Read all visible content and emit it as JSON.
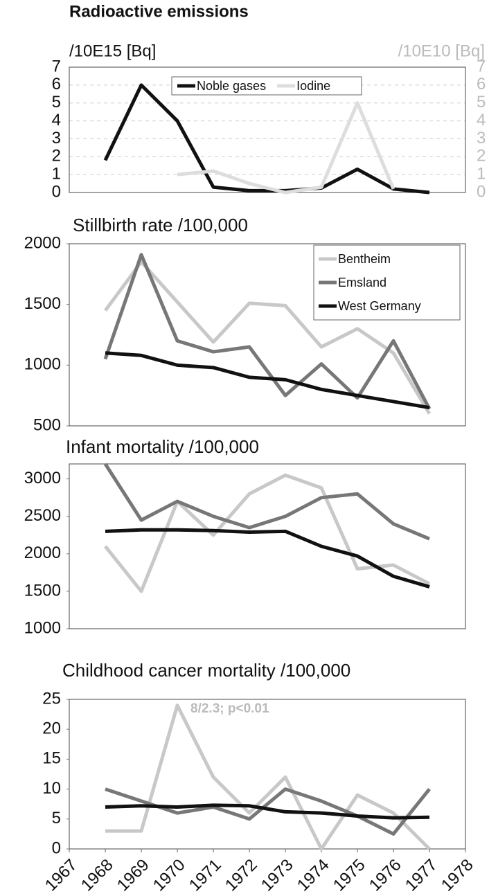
{
  "chart_data": [
    {
      "type": "line",
      "title": "Radioactive emissions",
      "ylabel": "/10E15 [Bq]",
      "y2label": "/10E10 [Bq]",
      "x": [
        1968,
        1969,
        1970,
        1971,
        1972,
        1973,
        1974,
        1975,
        1976,
        1977
      ],
      "xlim": [
        1967,
        1978
      ],
      "ylim": [
        0,
        7
      ],
      "yticks": [
        0,
        1,
        2,
        3,
        4,
        5,
        6,
        7
      ],
      "y2lim": [
        0,
        7
      ],
      "y2ticks": [
        0,
        1,
        2,
        3,
        4,
        5,
        6,
        7
      ],
      "grid": true,
      "legend": "top",
      "series": [
        {
          "name": "Noble gases",
          "color": "#111111",
          "values": [
            1.8,
            6.0,
            4.0,
            0.3,
            0.1,
            0.1,
            0.25,
            1.3,
            0.2,
            0.0
          ]
        },
        {
          "name": "Iodine",
          "color": "#dddddd",
          "axis": "y2",
          "values": [
            null,
            null,
            1.0,
            1.2,
            0.5,
            0.0,
            0.3,
            5.0,
            0.2,
            null
          ]
        }
      ]
    },
    {
      "type": "line",
      "title": "Stillbirth rate /100,000",
      "x": [
        1968,
        1969,
        1970,
        1971,
        1972,
        1973,
        1974,
        1975,
        1976,
        1977
      ],
      "xlim": [
        1967,
        1978
      ],
      "ylim": [
        500,
        2000
      ],
      "yticks": [
        500,
        1000,
        1500,
        2000
      ],
      "legend": "upper right",
      "series": [
        {
          "name": "Bentheim",
          "color": "#c8c8c8",
          "values": [
            1450,
            1850,
            1520,
            1190,
            1510,
            1490,
            1150,
            1300,
            1100,
            600
          ]
        },
        {
          "name": "Emsland",
          "color": "#777777",
          "values": [
            1050,
            1910,
            1200,
            1110,
            1150,
            750,
            1010,
            730,
            1200,
            640
          ]
        },
        {
          "name": "West Germany",
          "color": "#111111",
          "values": [
            1100,
            1080,
            1000,
            980,
            900,
            880,
            800,
            750,
            700,
            650
          ]
        }
      ]
    },
    {
      "type": "line",
      "title": "Infant mortality /100,000",
      "x": [
        1968,
        1969,
        1970,
        1971,
        1972,
        1973,
        1974,
        1975,
        1976,
        1977
      ],
      "xlim": [
        1967,
        1978
      ],
      "ylim": [
        1000,
        3200
      ],
      "yticks": [
        1000,
        1500,
        2000,
        2500,
        3000
      ],
      "series": [
        {
          "color": "#c8c8c8",
          "values": [
            2100,
            1500,
            2700,
            2250,
            2800,
            3050,
            2880,
            1800,
            1850,
            1600
          ]
        },
        {
          "color": "#777777",
          "values": [
            3200,
            2450,
            2700,
            2500,
            2350,
            2500,
            2750,
            2800,
            2400,
            2200
          ]
        },
        {
          "color": "#111111",
          "values": [
            2300,
            2320,
            2320,
            2310,
            2290,
            2300,
            2100,
            1970,
            1700,
            1560
          ]
        }
      ]
    },
    {
      "type": "line",
      "title": "Childhood cancer mortality /100,000",
      "annotation": "8/2.3; p<0.01",
      "x": [
        1968,
        1969,
        1970,
        1971,
        1972,
        1973,
        1974,
        1975,
        1976,
        1977
      ],
      "xlim": [
        1967,
        1978
      ],
      "xticks": [
        1967,
        1968,
        1969,
        1970,
        1971,
        1972,
        1973,
        1974,
        1975,
        1976,
        1977,
        1978
      ],
      "ylim": [
        0,
        25
      ],
      "yticks": [
        0,
        5,
        10,
        15,
        20,
        25
      ],
      "series": [
        {
          "color": "#c8c8c8",
          "values": [
            3,
            3,
            24,
            12,
            6,
            12,
            0,
            9,
            6,
            0
          ]
        },
        {
          "color": "#777777",
          "values": [
            10,
            8,
            6,
            7,
            5,
            10,
            8,
            5.5,
            2.5,
            10
          ]
        },
        {
          "color": "#111111",
          "values": [
            7,
            7.2,
            7,
            7.3,
            7.2,
            6.2,
            6,
            5.5,
            5.2,
            5.3
          ]
        }
      ]
    }
  ]
}
